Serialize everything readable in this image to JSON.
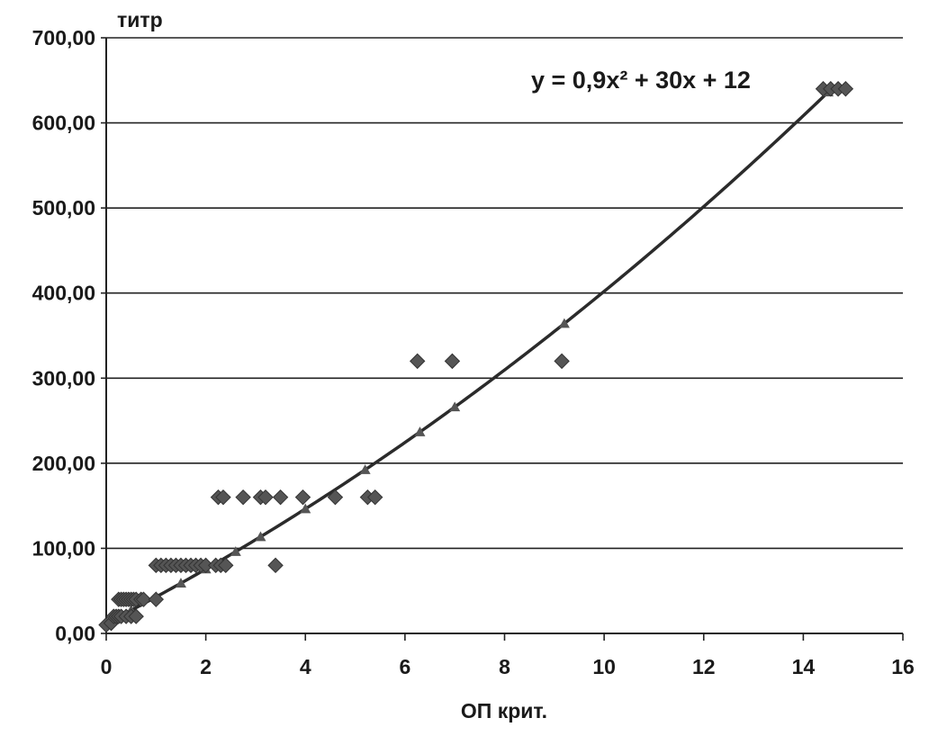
{
  "chart_data": {
    "type": "scatter",
    "title": "",
    "xlabel": "ОП крит.",
    "ylabel": "титр",
    "xlim": [
      0,
      16
    ],
    "ylim": [
      0,
      700
    ],
    "grid": "horizontal",
    "x_ticks": [
      0,
      2,
      4,
      6,
      8,
      10,
      12,
      14,
      16
    ],
    "y_ticks": [
      "0,00",
      "100,00",
      "200,00",
      "300,00",
      "400,00",
      "500,00",
      "600,00",
      "700,00"
    ],
    "y_tick_values": [
      0,
      100,
      200,
      300,
      400,
      500,
      600,
      700
    ],
    "trendline": {
      "type": "polynomial",
      "equation_text": "y = 0,9x² + 30x + 12",
      "coefficients": {
        "a": 0.9,
        "b": 30,
        "c": 12
      }
    },
    "colors": {
      "points": "#555555",
      "trendline": "#2b2b2b",
      "grid": "#222222",
      "axis": "#222222"
    },
    "series": [
      {
        "marker": "diamond",
        "points": [
          [
            0.0,
            10
          ],
          [
            0.1,
            12
          ],
          [
            0.15,
            20
          ],
          [
            0.2,
            20
          ],
          [
            0.25,
            20
          ],
          [
            0.3,
            20
          ],
          [
            0.4,
            20
          ],
          [
            0.5,
            20
          ],
          [
            0.6,
            20
          ],
          [
            0.25,
            40
          ],
          [
            0.3,
            40
          ],
          [
            0.35,
            40
          ],
          [
            0.4,
            40
          ],
          [
            0.45,
            40
          ],
          [
            0.5,
            40
          ],
          [
            0.55,
            40
          ],
          [
            0.6,
            40
          ],
          [
            0.7,
            40
          ],
          [
            0.75,
            40
          ],
          [
            1.0,
            40
          ],
          [
            1.0,
            80
          ],
          [
            1.1,
            80
          ],
          [
            1.2,
            80
          ],
          [
            1.3,
            80
          ],
          [
            1.4,
            80
          ],
          [
            1.5,
            80
          ],
          [
            1.6,
            80
          ],
          [
            1.7,
            80
          ],
          [
            1.8,
            80
          ],
          [
            1.9,
            80
          ],
          [
            2.0,
            80
          ],
          [
            2.2,
            80
          ],
          [
            2.3,
            80
          ],
          [
            2.4,
            80
          ],
          [
            3.4,
            80
          ],
          [
            2.25,
            160
          ],
          [
            2.35,
            160
          ],
          [
            2.75,
            160
          ],
          [
            3.1,
            160
          ],
          [
            3.2,
            160
          ],
          [
            3.5,
            160
          ],
          [
            3.95,
            160
          ],
          [
            4.6,
            160
          ],
          [
            5.25,
            160
          ],
          [
            5.4,
            160
          ],
          [
            6.25,
            320
          ],
          [
            6.95,
            320
          ],
          [
            9.15,
            320
          ],
          [
            14.4,
            640
          ],
          [
            14.55,
            640
          ],
          [
            14.7,
            640
          ],
          [
            14.85,
            640
          ]
        ]
      }
    ]
  }
}
